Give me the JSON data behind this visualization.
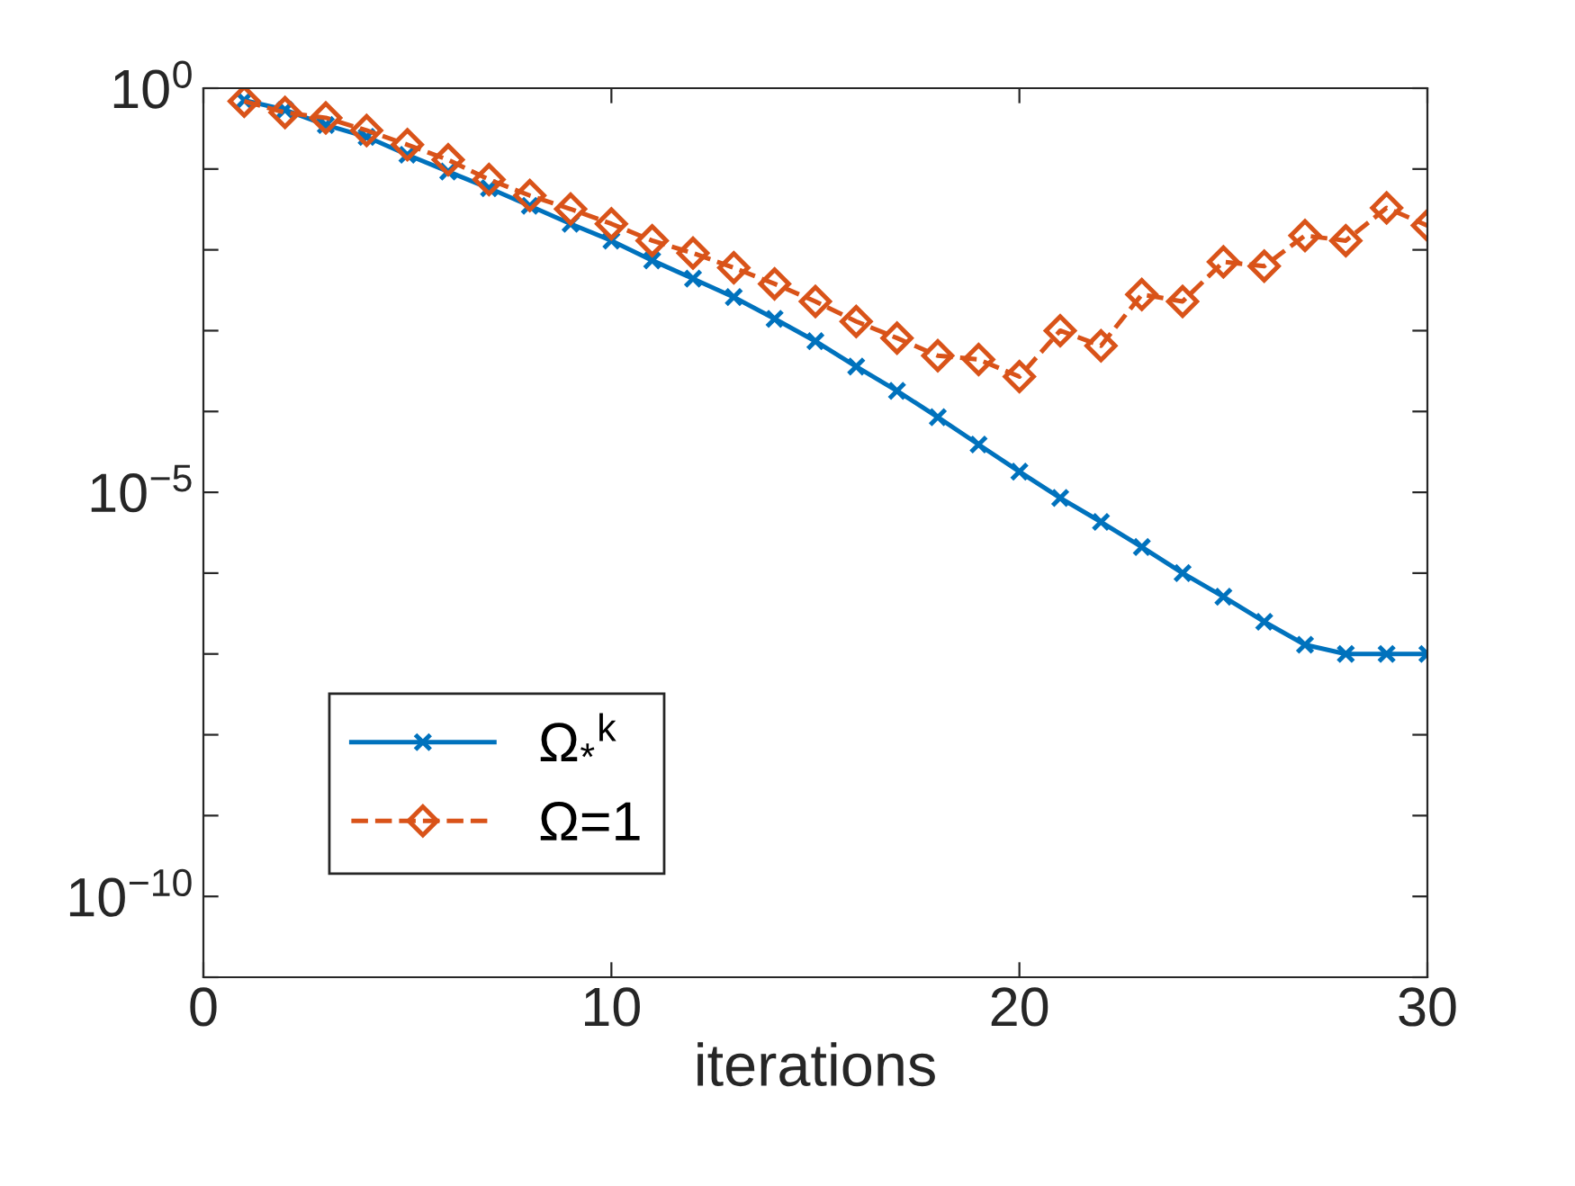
{
  "chart_data": {
    "type": "line",
    "xlabel": "iterations",
    "log": "y",
    "grid": false,
    "legend": "bottom left",
    "xlim": [
      0,
      30
    ],
    "xticks": [
      0,
      10,
      20,
      30
    ],
    "ylim": [
      1e-11,
      1
    ],
    "yticks": [
      {
        "value": 1,
        "label": "10$^{0}$"
      },
      {
        "value": 0.1,
        "label": null
      },
      {
        "value": 0.01,
        "label": null
      },
      {
        "value": 0.001,
        "label": null
      },
      {
        "value": 0.0001,
        "label": null
      },
      {
        "value": 1e-05,
        "label": "10$^{−5}$"
      },
      {
        "value": 1e-06,
        "label": null
      },
      {
        "value": 1e-07,
        "label": null
      },
      {
        "value": 1e-08,
        "label": null
      },
      {
        "value": 1e-09,
        "label": null
      },
      {
        "value": 1e-10,
        "label": "10$^{−10}$"
      },
      {
        "value": 1e-11,
        "label": null
      }
    ],
    "x": [
      1,
      2,
      3,
      4,
      5,
      6,
      7,
      8,
      9,
      10,
      11,
      12,
      13,
      14,
      15,
      16,
      17,
      18,
      19,
      20,
      21,
      22,
      23,
      24,
      25,
      26,
      27,
      28,
      29,
      30
    ],
    "series": [
      {
        "name": "Ω$_{*}$$^{k}$",
        "color": "#0072bd",
        "marker": "cross",
        "line_style": "solid",
        "values": [
          0.71,
          0.54,
          0.35,
          0.25,
          0.15,
          0.093,
          0.058,
          0.035,
          0.021,
          0.013,
          0.0074,
          0.0044,
          0.0026,
          0.0014,
          0.00074,
          0.00036,
          0.00018,
          8.5e-05,
          3.9e-05,
          1.8e-05,
          8.5e-06,
          4.3e-06,
          2.1e-06,
          1e-06,
          5.1e-07,
          2.5e-07,
          1.3e-07,
          1e-07,
          1e-07,
          1e-07
        ]
      },
      {
        "name": "Ω=1",
        "color": "#d95319",
        "marker": "diamond",
        "line_style": "dashed",
        "values": [
          0.69,
          0.5,
          0.43,
          0.3,
          0.2,
          0.13,
          0.074,
          0.047,
          0.032,
          0.021,
          0.013,
          0.0091,
          0.006,
          0.0038,
          0.0023,
          0.0013,
          0.00081,
          0.00049,
          0.00044,
          0.00027,
          0.001,
          0.00065,
          0.0028,
          0.0023,
          0.0071,
          0.0063,
          0.015,
          0.013,
          0.033,
          0.02
        ]
      }
    ]
  }
}
